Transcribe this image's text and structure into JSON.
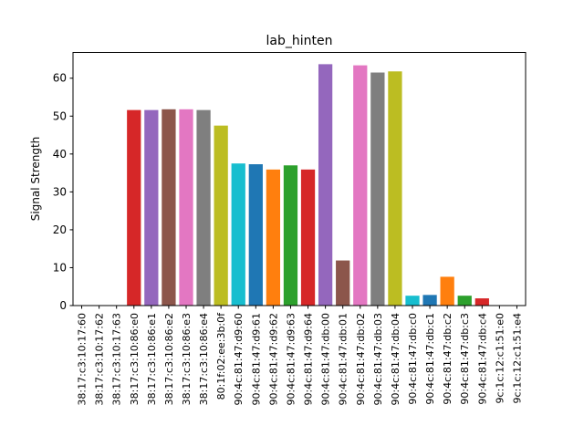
{
  "chart_data": {
    "type": "bar",
    "title": "lab_hinten",
    "xlabel": "",
    "ylabel": "Signal Strength",
    "ylim": [
      0,
      66.8
    ],
    "yticks": [
      0,
      10,
      20,
      30,
      40,
      50,
      60
    ],
    "grid": false,
    "legend": "none",
    "categories": [
      "38:17:c3:10:17:60",
      "38:17:c3:10:17:62",
      "38:17:c3:10:17:63",
      "38:17:c3:10:86:e0",
      "38:17:c3:10:86:e1",
      "38:17:c3:10:86:e2",
      "38:17:c3:10:86:e3",
      "38:17:c3:10:86:e4",
      "80:1f:02:ee:3b:0f",
      "90:4c:81:47:d9:60",
      "90:4c:81:47:d9:61",
      "90:4c:81:47:d9:62",
      "90:4c:81:47:d9:63",
      "90:4c:81:47:d9:64",
      "90:4c:81:47:db:00",
      "90:4c:81:47:db:01",
      "90:4c:81:47:db:02",
      "90:4c:81:47:db:03",
      "90:4c:81:47:db:04",
      "90:4c:81:47:db:c0",
      "90:4c:81:47:db:c1",
      "90:4c:81:47:db:c2",
      "90:4c:81:47:db:c3",
      "90:4c:81:47:db:c4",
      "9c:1c:12:c1:51:e0",
      "9c:1c:12:c1:51:e4"
    ],
    "values": [
      0,
      0,
      0,
      51.6,
      51.6,
      51.8,
      51.8,
      51.6,
      47.5,
      37.5,
      37.3,
      35.9,
      37.0,
      35.9,
      63.7,
      11.9,
      63.4,
      61.5,
      61.8,
      2.6,
      2.8,
      7.6,
      2.6,
      1.9,
      0,
      0
    ],
    "colors": [
      "#1f77b4",
      "#ff7f0e",
      "#2ca02c",
      "#d62728",
      "#9467bd",
      "#8c564b",
      "#e377c2",
      "#7f7f7f",
      "#bcbd22",
      "#17becf"
    ]
  }
}
